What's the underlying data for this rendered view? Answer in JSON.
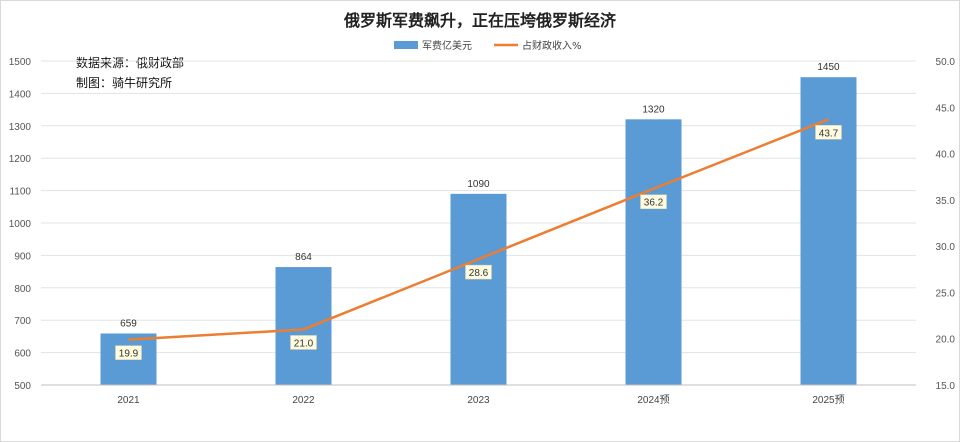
{
  "chart_data": {
    "type": "bar",
    "title": "俄罗斯军费飙升，正在压垮俄罗斯经济",
    "source_lines": [
      "数据来源：俄财政部",
      "制图：骑牛研究所"
    ],
    "categories": [
      "2021",
      "2022",
      "2023",
      "2024预",
      "2025预"
    ],
    "series": [
      {
        "name": "军费亿美元",
        "type": "bar",
        "axis": "left",
        "color": "#5b9bd5",
        "values": [
          659,
          864,
          1090,
          1320,
          1450
        ],
        "labels": [
          "659",
          "864",
          "1090",
          "1320",
          "1450"
        ]
      },
      {
        "name": "占财政收入%",
        "type": "line",
        "axis": "right",
        "color": "#ed7d31",
        "values": [
          19.9,
          21.0,
          28.6,
          36.2,
          43.7
        ],
        "labels": [
          "19.9",
          "21.0",
          "28.6",
          "36.2",
          "43.7"
        ]
      }
    ],
    "y_left": {
      "min": 500,
      "max": 1500,
      "ticks": [
        500,
        600,
        700,
        800,
        900,
        1000,
        1100,
        1200,
        1300,
        1400,
        1500
      ]
    },
    "y_right": {
      "min": 15,
      "max": 50,
      "ticks": [
        "15.0",
        "20.0",
        "25.0",
        "30.0",
        "35.0",
        "40.0",
        "45.0",
        "50.0"
      ]
    },
    "legend_position": "top-center",
    "grid": true,
    "colors": {
      "bar": "#5b9bd5",
      "line": "#ed7d31",
      "grid": "#e3e3e3",
      "axis_text": "#555555",
      "line_label_bg": "#fffbe0"
    }
  }
}
